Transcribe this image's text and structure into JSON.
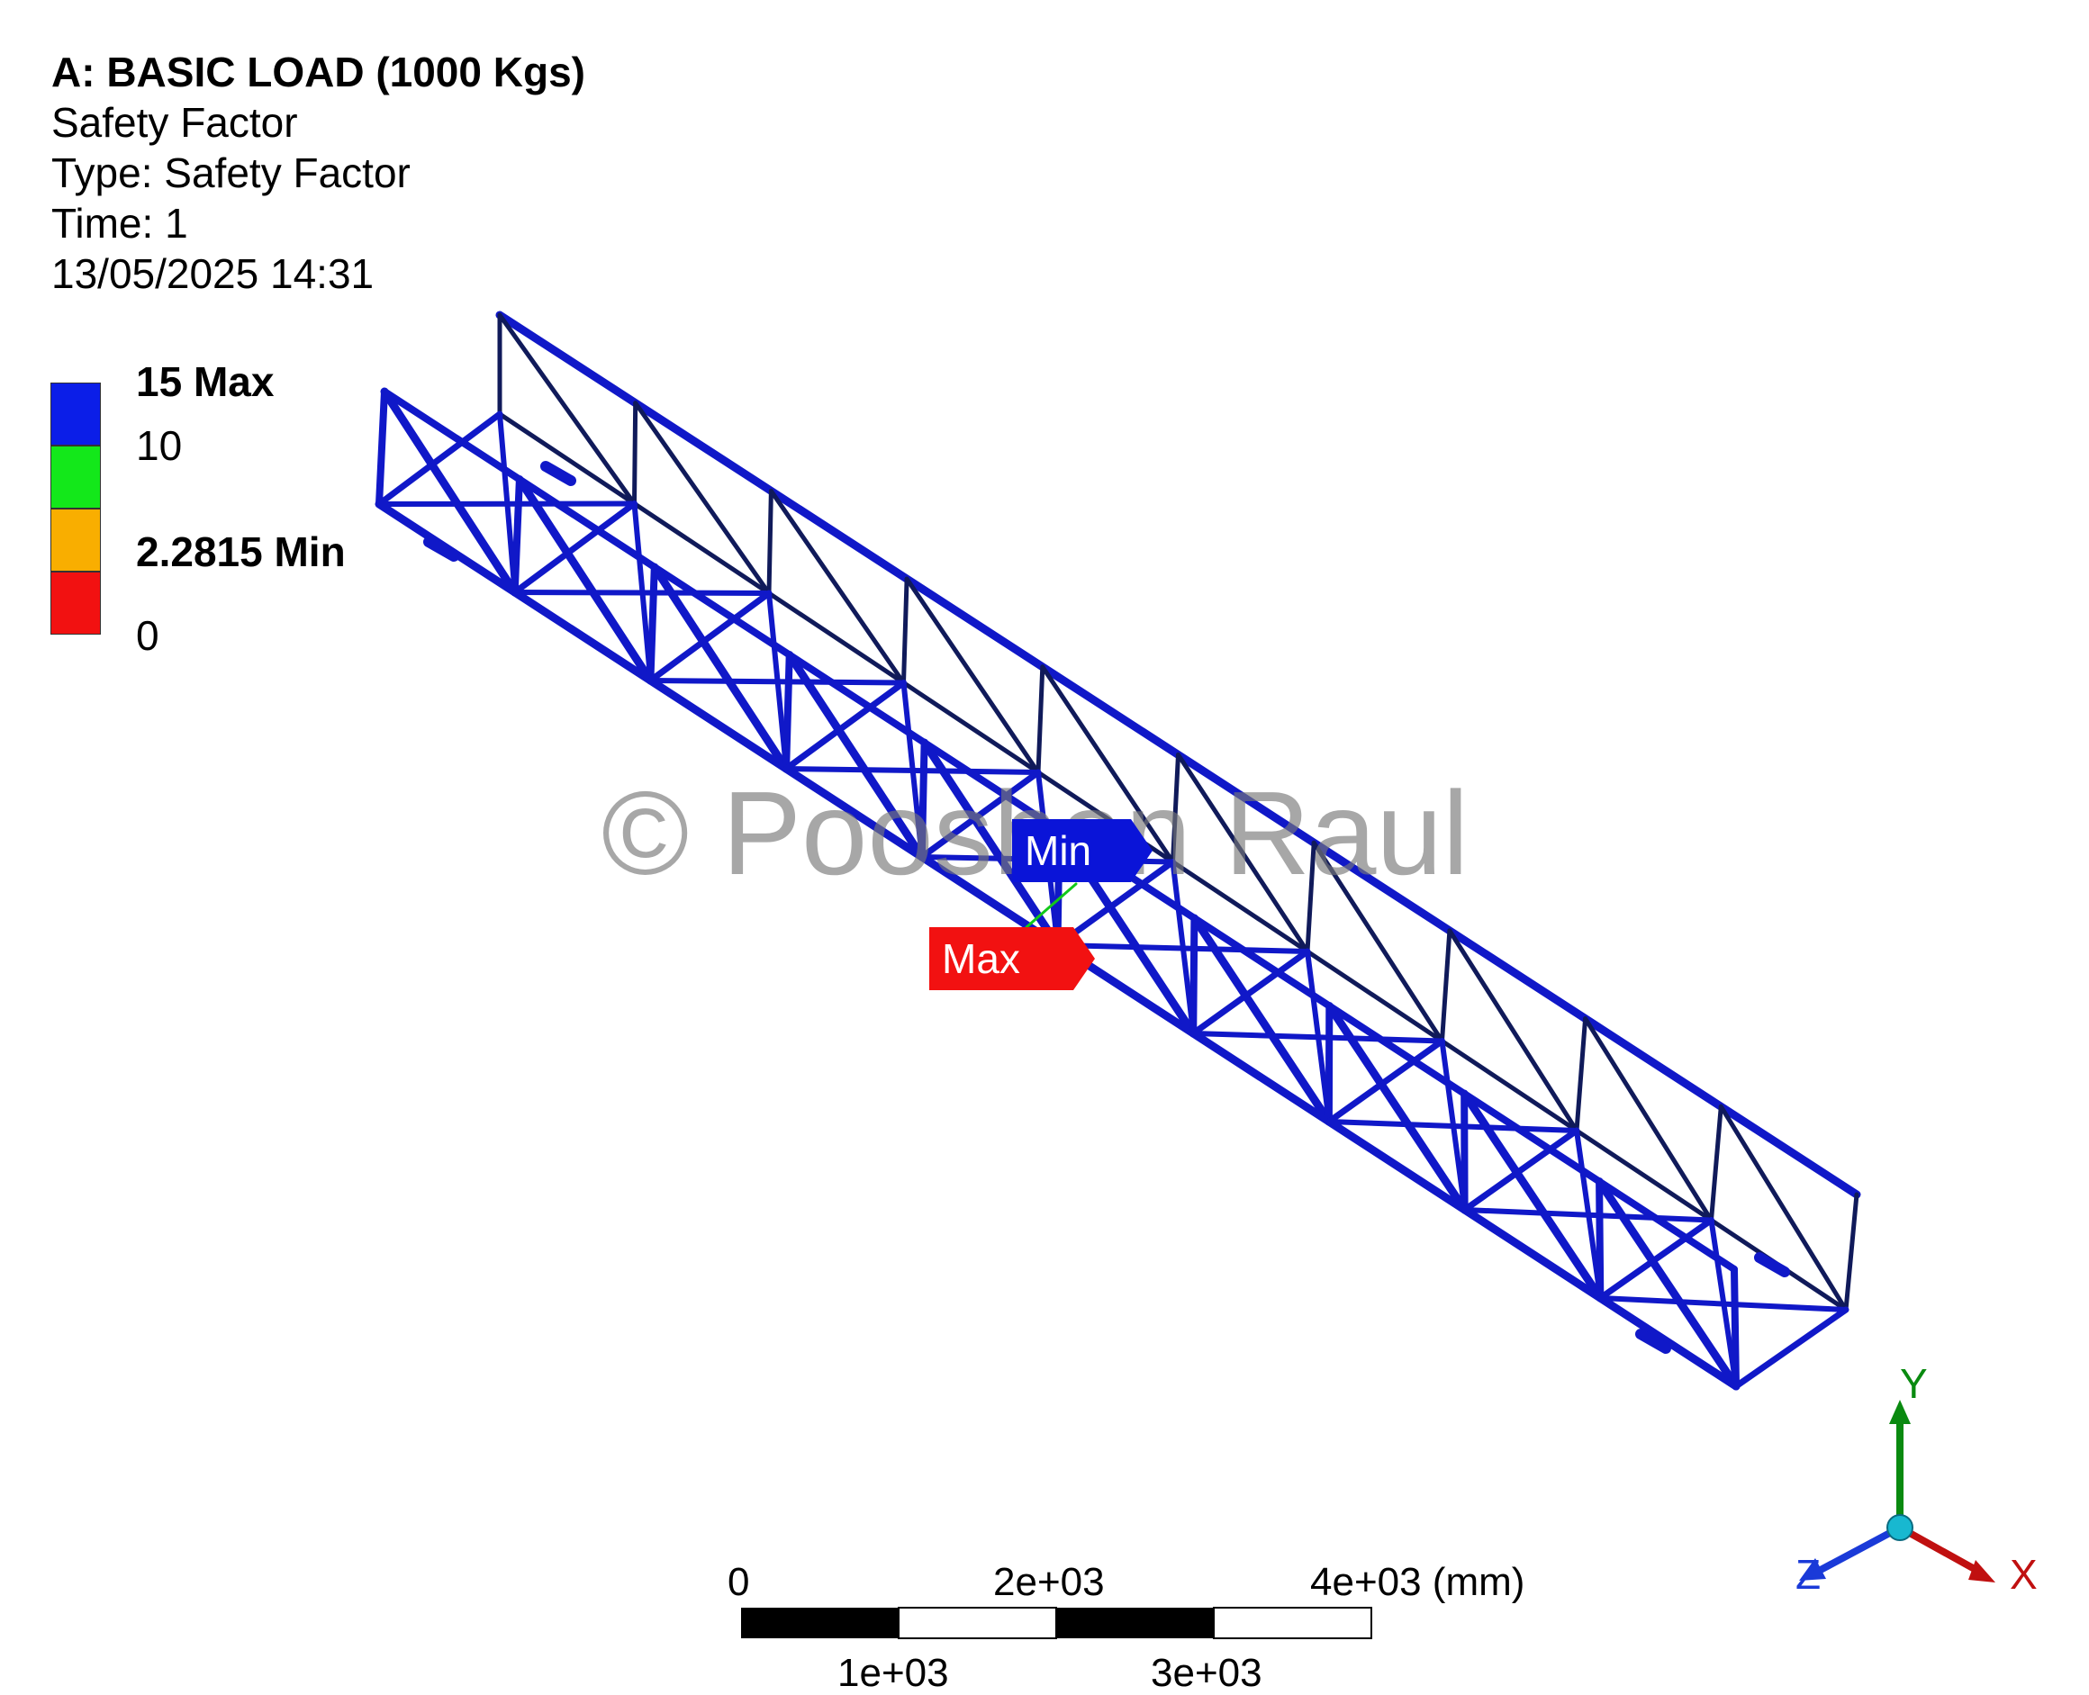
{
  "header": {
    "title": "A: BASIC LOAD (1000 Kgs)",
    "result_name": "Safety Factor",
    "type": "Type: Safety Factor",
    "time": "Time: 1",
    "timestamp": "13/05/2025 14:31"
  },
  "legend": {
    "max_label": "15 Max",
    "label_10": "10",
    "min_label": "2.2815 Min",
    "label_0": "0",
    "colors": {
      "blue": "#0b1ee8",
      "green": "#13e81a",
      "orange": "#f9ae00",
      "red": "#f21111"
    }
  },
  "probes": {
    "min_tag": "Min",
    "max_tag": "Max"
  },
  "watermark": "© Pooshan Raul",
  "scale_bar": {
    "top_labels": [
      "0",
      "2e+03",
      "4e+03 (mm)"
    ],
    "bottom_labels": [
      "1e+03",
      "3e+03"
    ]
  },
  "triad": {
    "y": "Y",
    "z": "Z",
    "x": "X"
  },
  "colors": {
    "member": "#1018c8",
    "member_dark": "#101a5a",
    "y_axis": "#0a8a10",
    "x_axis": "#c01010",
    "z_axis": "#1a3ad8"
  }
}
